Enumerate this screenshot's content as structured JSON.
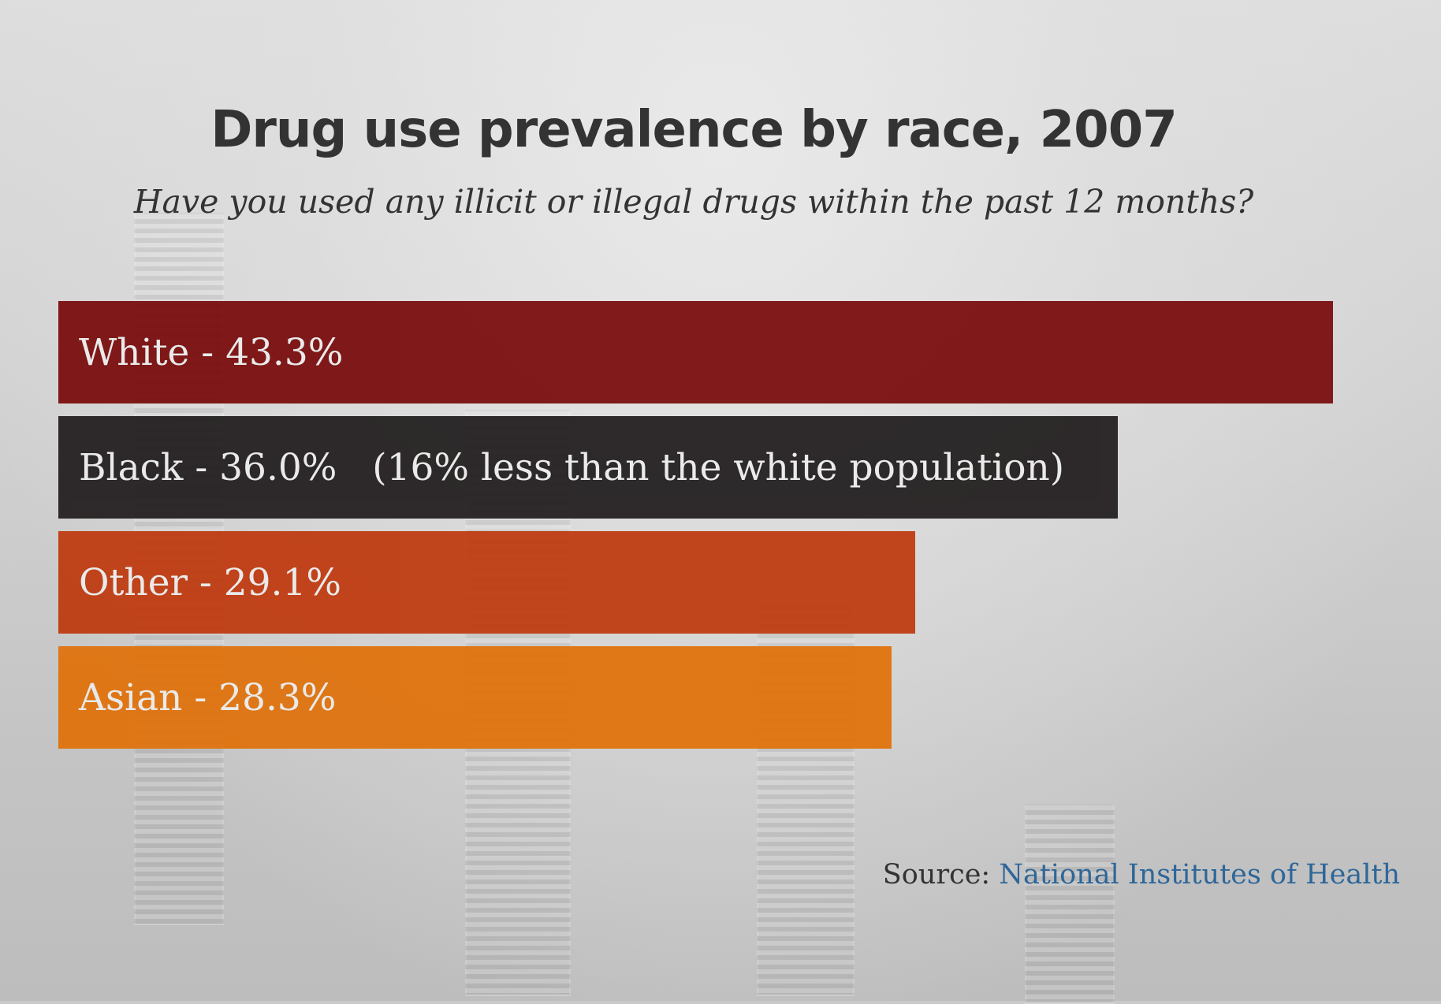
{
  "chart_data": {
    "type": "bar",
    "orientation": "horizontal",
    "title": "Drug use prevalence by race, 2007",
    "subtitle": "Have you used any illicit or illegal drugs within the past 12 months?",
    "categories": [
      "White",
      "Black",
      "Other",
      "Asian"
    ],
    "values": [
      43.3,
      36.0,
      29.1,
      28.3
    ],
    "labels": [
      "White - 43.3%",
      "Black - 36.0%   (16% less than the white population)",
      "Other - 29.1%",
      "Asian - 28.3%"
    ],
    "colors": [
      "#7a0d0d",
      "#231f20",
      "#bf3b10",
      "#e0720c"
    ],
    "xlim": [
      0,
      43.3
    ],
    "grid": false
  },
  "source": {
    "prefix": "Source: ",
    "link_text": "National Institutes of Health"
  }
}
